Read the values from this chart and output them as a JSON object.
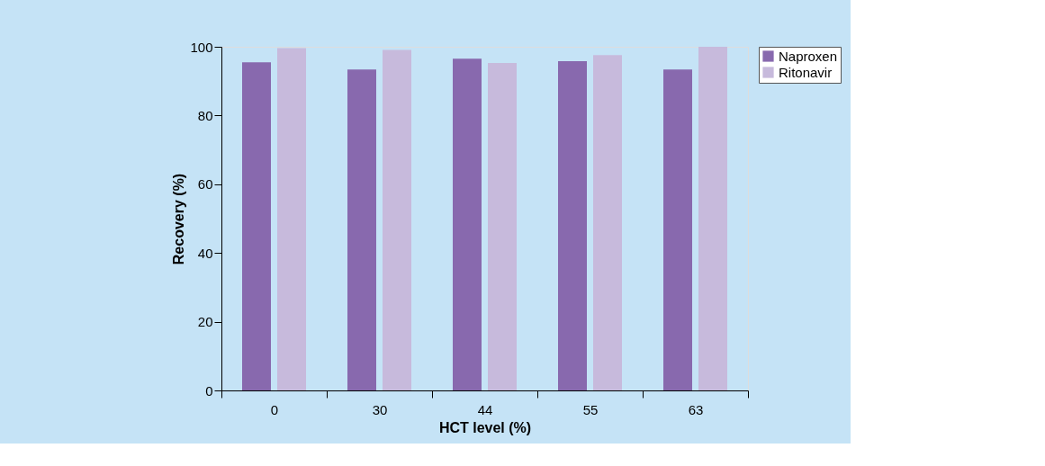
{
  "chart_data": {
    "type": "bar",
    "xlabel": "HCT level (%)",
    "ylabel": "Recovery (%)",
    "categories": [
      "0",
      "30",
      "44",
      "55",
      "63"
    ],
    "series": [
      {
        "name": "Naproxen",
        "color": "#8869ae",
        "values": [
          95.5,
          93.4,
          96.5,
          95.8,
          93.4
        ]
      },
      {
        "name": "Ritonavir",
        "color": "#c7badc",
        "values": [
          99.6,
          99.1,
          95.3,
          97.6,
          100
        ]
      }
    ],
    "ylim": [
      0,
      100
    ],
    "yticks": [
      0,
      20,
      40,
      60,
      80,
      100
    ],
    "grid": false,
    "legend": "top right"
  }
}
